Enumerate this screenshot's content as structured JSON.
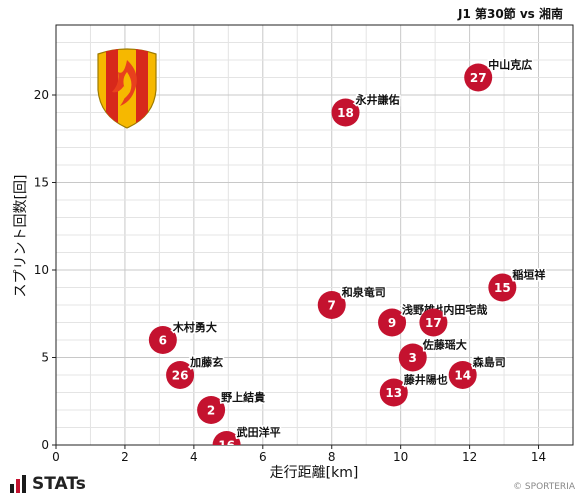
{
  "chart_data": {
    "type": "scatter",
    "title": "J1 第30節 vs 湘南",
    "xlabel": "走行距離[km]",
    "ylabel": "スプリント回数[回]",
    "xlim": [
      0,
      15
    ],
    "ylim": [
      0,
      24
    ],
    "xticks": [
      0,
      2,
      4,
      6,
      8,
      10,
      12,
      14
    ],
    "yticks": [
      0,
      5,
      10,
      15,
      20
    ],
    "grid": true,
    "marker_color": "#c4122f",
    "points": [
      {
        "number": "27",
        "name": "中山克広",
        "x": 12.25,
        "y": 21
      },
      {
        "number": "18",
        "name": "永井謙佑",
        "x": 8.4,
        "y": 19
      },
      {
        "number": "15",
        "name": "稲垣祥",
        "x": 12.95,
        "y": 9
      },
      {
        "number": "7",
        "name": "和泉竜司",
        "x": 8.0,
        "y": 8
      },
      {
        "number": "9",
        "name": "浅野雄也",
        "x": 9.75,
        "y": 7
      },
      {
        "number": "17",
        "name": "内田宅哉",
        "x": 10.95,
        "y": 7
      },
      {
        "number": "6",
        "name": "木村勇大",
        "x": 3.1,
        "y": 6
      },
      {
        "number": "3",
        "name": "佐藤瑶大",
        "x": 10.35,
        "y": 5
      },
      {
        "number": "26",
        "name": "加藤玄",
        "x": 3.6,
        "y": 4
      },
      {
        "number": "14",
        "name": "森島司",
        "x": 11.8,
        "y": 4
      },
      {
        "number": "13",
        "name": "藤井陽也",
        "x": 9.8,
        "y": 3
      },
      {
        "number": "2",
        "name": "野上結貴",
        "x": 4.5,
        "y": 2
      },
      {
        "number": "16",
        "name": "武田洋平",
        "x": 4.95,
        "y": 0
      }
    ]
  },
  "branding": {
    "logo_text": "STATs",
    "credit": "© SPORTERIA",
    "accent_red": "#c4122f",
    "shield_yellow": "#f6b800",
    "shield_red": "#d7281b"
  }
}
